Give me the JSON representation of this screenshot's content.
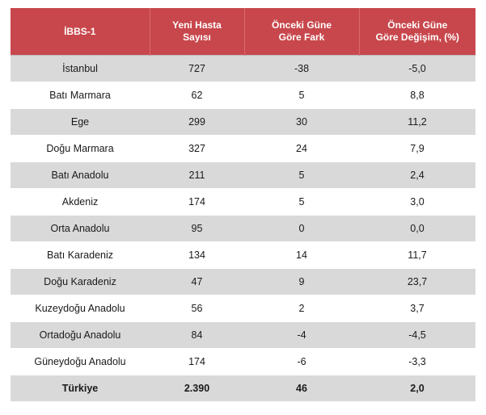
{
  "table": {
    "headers": [
      "İBBS-1",
      "Yeni Hasta Sayısı",
      "Önceki Güne Göre Fark",
      "Önceki Güne Göre Değişim, (%)"
    ],
    "headers_lines": [
      [
        "İBBS-1"
      ],
      [
        "Yeni Hasta",
        "Sayısı"
      ],
      [
        "Önceki Güne",
        "Göre Fark"
      ],
      [
        "Önceki Güne",
        "Göre Değişim, (%)"
      ]
    ],
    "rows": [
      [
        "İstanbul",
        "727",
        "-38",
        "-5,0"
      ],
      [
        "Batı Marmara",
        "62",
        "5",
        "8,8"
      ],
      [
        "Ege",
        "299",
        "30",
        "11,2"
      ],
      [
        "Doğu Marmara",
        "327",
        "24",
        "7,9"
      ],
      [
        "Batı Anadolu",
        "211",
        "5",
        "2,4"
      ],
      [
        "Akdeniz",
        "174",
        "5",
        "3,0"
      ],
      [
        "Orta Anadolu",
        "95",
        "0",
        "0,0"
      ],
      [
        "Batı Karadeniz",
        "134",
        "14",
        "11,7"
      ],
      [
        "Doğu Karadeniz",
        "47",
        "9",
        "23,7"
      ],
      [
        "Kuzeydoğu Anadolu",
        "56",
        "2",
        "3,7"
      ],
      [
        "Ortadoğu Anadolu",
        "84",
        "-4",
        "-4,5"
      ],
      [
        "Güneydoğu Anadolu",
        "174",
        "-6",
        "-3,3"
      ]
    ],
    "total": [
      "Türkiye",
      "2.390",
      "46",
      "2,0"
    ]
  },
  "colors": {
    "header_bg": "#c8474c",
    "header_text": "#ffffff",
    "row_shade": "#d9d9d9",
    "row_plain": "#ffffff"
  }
}
